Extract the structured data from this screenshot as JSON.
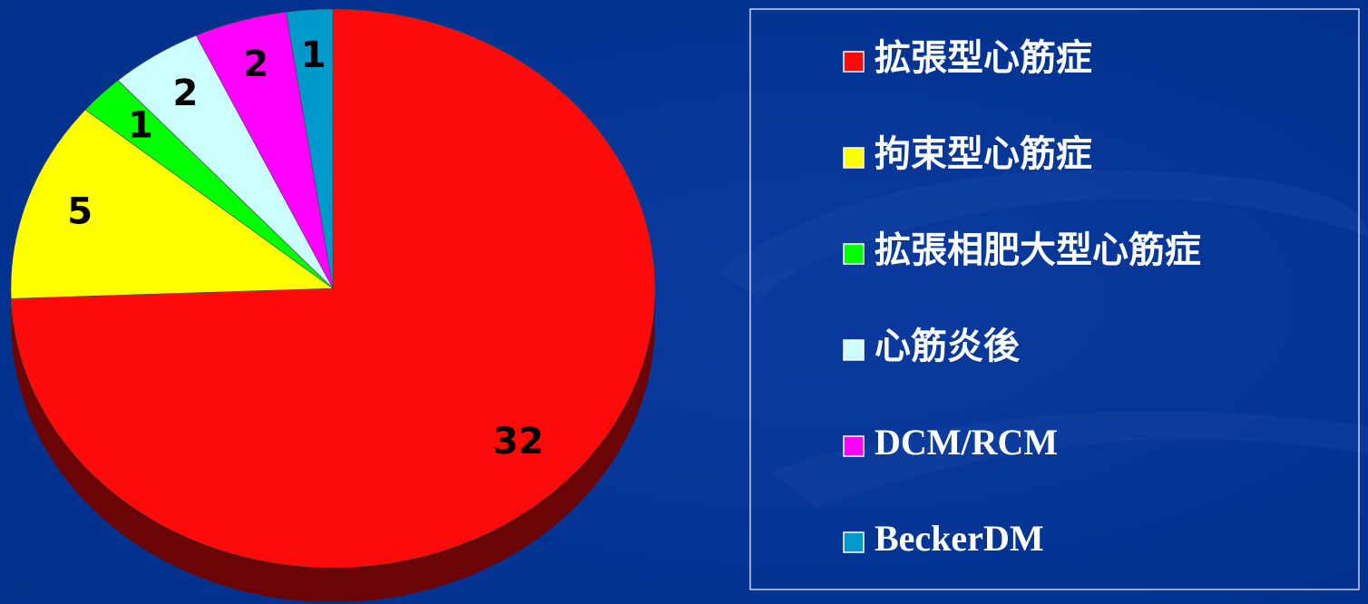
{
  "chart_data": {
    "type": "pie",
    "categories": [
      "拡張型心筋症",
      "拘束型心筋症",
      "拡張相肥大型心筋症",
      "心筋炎後",
      "DCM/RCM",
      "BeckerDM"
    ],
    "values": [
      32,
      5,
      1,
      2,
      2,
      1
    ],
    "colors": [
      "#ff0a0a",
      "#ffff00",
      "#00ff00",
      "#ccffff",
      "#ff00ff",
      "#0099cc"
    ]
  }
}
